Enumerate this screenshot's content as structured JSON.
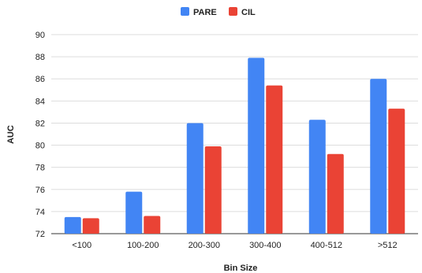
{
  "chart_data": {
    "type": "bar",
    "title": "",
    "xlabel": "Bin Size",
    "ylabel": "AUC",
    "categories": [
      "<100",
      "100-200",
      "200-300",
      "300-400",
      "400-512",
      ">512"
    ],
    "series": [
      {
        "name": "PARE",
        "color": "#4285f4",
        "values": [
          73.5,
          75.8,
          82.0,
          87.9,
          82.3,
          86.0
        ]
      },
      {
        "name": "CIL",
        "color": "#ea4335",
        "values": [
          73.4,
          73.6,
          79.9,
          85.4,
          79.2,
          83.3
        ]
      }
    ],
    "ylim": [
      72,
      90
    ],
    "yticks": [
      72,
      74,
      76,
      78,
      80,
      82,
      84,
      86,
      88,
      90
    ],
    "grid": true,
    "legend_position": "top-center"
  }
}
